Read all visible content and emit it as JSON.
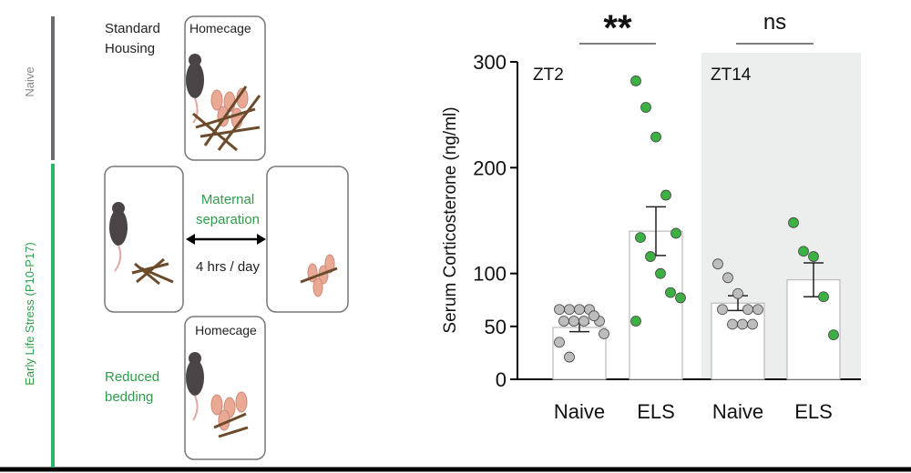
{
  "diagram": {
    "side_labels": [
      "Naive",
      "Early Life Stress (P10-P17)"
    ],
    "standard_housing": [
      "Standard",
      "Housing"
    ],
    "homecage_top": "Homecage",
    "maternal_separation": [
      "Maternal",
      "separation"
    ],
    "duration": "4 hrs / day",
    "homecage_bottom": "Homecage",
    "reduced_bedding": [
      "Reduced",
      "bedding"
    ]
  },
  "chart_data": {
    "type": "bar",
    "y_label": "Serum Corticosterone (ng/ml)",
    "categories": [
      "Naive",
      "ELS",
      "Naive",
      "ELS"
    ],
    "group_labels": [
      "ZT2",
      "ZT14"
    ],
    "significance": [
      "**",
      "ns"
    ],
    "values": [
      49,
      140,
      72,
      94
    ],
    "errors": [
      4,
      23,
      7,
      16
    ],
    "colors": [
      "#bdbdbd",
      "#3cb043",
      "#bdbdbd",
      "#3cb043"
    ],
    "points": [
      [
        66,
        66,
        66,
        66,
        55,
        55,
        55,
        55,
        60,
        43,
        35,
        21
      ],
      [
        282,
        257,
        229,
        174,
        138,
        134,
        116,
        100,
        82,
        77,
        55
      ],
      [
        109,
        96,
        81,
        66,
        66,
        66,
        52,
        52,
        52
      ],
      [
        148,
        121,
        116,
        78,
        42
      ]
    ],
    "ylim": [
      0,
      300
    ],
    "yticks": [
      0,
      50,
      100,
      200,
      300
    ]
  }
}
